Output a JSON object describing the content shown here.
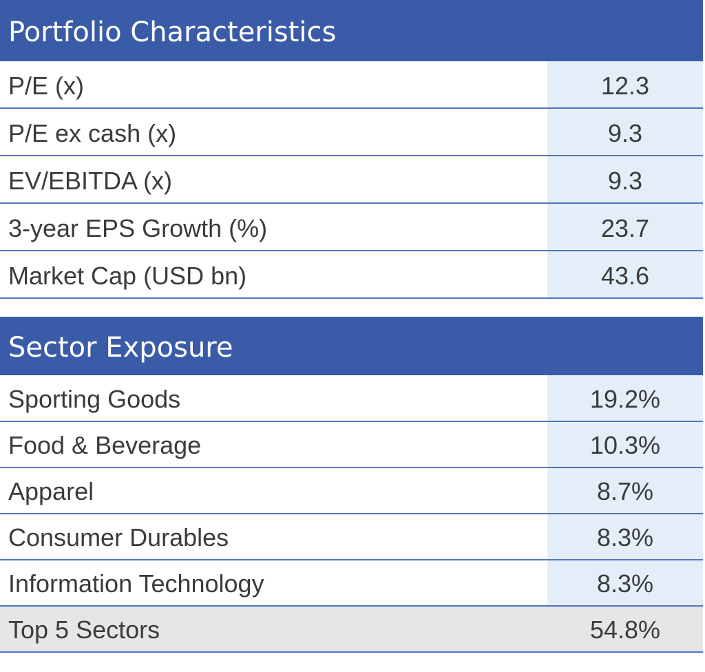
{
  "portfolio": {
    "title": "Portfolio Characteristics",
    "rows": [
      {
        "label": "P/E (x)",
        "value": "12.3"
      },
      {
        "label": "P/E ex cash (x)",
        "value": "9.3"
      },
      {
        "label": "EV/EBITDA (x)",
        "value": "9.3"
      },
      {
        "label": "3-year EPS Growth (%)",
        "value": "23.7"
      },
      {
        "label": "Market Cap (USD bn)",
        "value": "43.6"
      }
    ]
  },
  "sectors": {
    "title": "Sector Exposure",
    "rows": [
      {
        "label": "Sporting Goods",
        "value": "19.2%"
      },
      {
        "label": "Food & Beverage",
        "value": "10.3%"
      },
      {
        "label": "Apparel",
        "value": "8.7%"
      },
      {
        "label": "Consumer Durables",
        "value": "8.3%"
      },
      {
        "label": "Information Technology",
        "value": "8.3%"
      }
    ],
    "total": {
      "label": "Top 5 Sectors",
      "value": "54.8%"
    }
  },
  "colors": {
    "header_bg": "#3a5ca8",
    "value_cell_bg": "#e4eef8",
    "total_row_bg": "#e6e6e8",
    "row_rule": "#5474bd"
  }
}
